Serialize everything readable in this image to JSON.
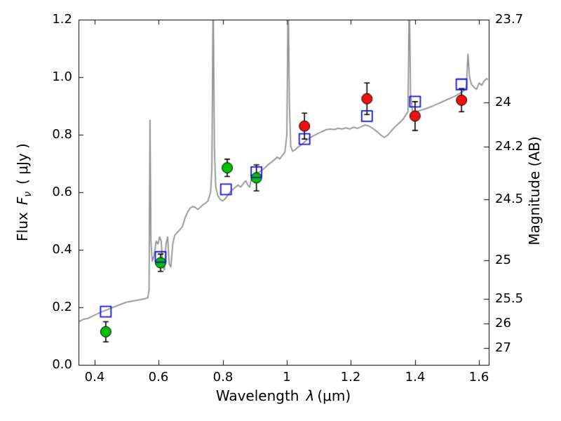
{
  "figure": {
    "background": "#ffffff",
    "frame_color": "#000000",
    "axes": {
      "x": {
        "label_prefix": "Wavelength",
        "label_symbol": "λ",
        "label_unit": "(μm)",
        "min": 0.35,
        "max": 1.63,
        "ticks": [
          0.4,
          0.6,
          0.8,
          1,
          1.2,
          1.4,
          1.6
        ],
        "tick_labels": [
          "0.4",
          "0.6",
          "0.8",
          "1",
          "1.2",
          "1.4",
          "1.6"
        ]
      },
      "y_left": {
        "label_prefix": "Flux",
        "label_symbol": "F",
        "label_sub": "ν",
        "label_unit": "( μJy )",
        "min": 0.0,
        "max": 1.2,
        "ticks": [
          0.0,
          0.2,
          0.4,
          0.6,
          0.8,
          1.0,
          1.2
        ],
        "tick_labels": [
          "0.0",
          "0.2",
          "0.4",
          "0.6",
          "0.8",
          "1.0",
          "1.2"
        ]
      },
      "y_right": {
        "label": "Magnitude (AB)",
        "zeropoint_ab": 23.9,
        "ticks": [
          23.7,
          24,
          24.2,
          24.5,
          25,
          25.5,
          26,
          27
        ],
        "tick_labels": [
          "23.7",
          "24",
          "24.2",
          "24.5",
          "25",
          "25.5",
          "26",
          "27"
        ]
      }
    }
  },
  "chart_data": {
    "type": "line",
    "title": "",
    "xlabel": "Wavelength λ (μm)",
    "ylabel": "Flux Fν ( μJy )",
    "ylabel_right": "Magnitude (AB)",
    "xlim": [
      0.35,
      1.63
    ],
    "ylim": [
      0.0,
      1.2
    ],
    "grid": false,
    "legend": "none",
    "series": [
      {
        "name": "model-spectrum",
        "type": "line",
        "color": "#909090",
        "linewidth": 1.8,
        "x": [
          0.35,
          0.365,
          0.38,
          0.395,
          0.41,
          0.425,
          0.44,
          0.455,
          0.47,
          0.485,
          0.5,
          0.515,
          0.53,
          0.545,
          0.558,
          0.566,
          0.57,
          0.573,
          0.576,
          0.58,
          0.586,
          0.592,
          0.598,
          0.603,
          0.608,
          0.613,
          0.618,
          0.623,
          0.628,
          0.633,
          0.638,
          0.644,
          0.65,
          0.658,
          0.666,
          0.674,
          0.682,
          0.69,
          0.698,
          0.706,
          0.714,
          0.722,
          0.73,
          0.738,
          0.746,
          0.754,
          0.762,
          0.766,
          0.77,
          0.774,
          0.778,
          0.784,
          0.792,
          0.8,
          0.808,
          0.816,
          0.824,
          0.832,
          0.84,
          0.848,
          0.856,
          0.864,
          0.872,
          0.878,
          0.884,
          0.89,
          0.898,
          0.906,
          0.914,
          0.922,
          0.93,
          0.938,
          0.946,
          0.954,
          0.962,
          0.97,
          0.978,
          0.986,
          0.994,
          1.0,
          1.004,
          1.008,
          1.012,
          1.018,
          1.026,
          1.034,
          1.042,
          1.05,
          1.058,
          1.066,
          1.074,
          1.082,
          1.09,
          1.1,
          1.112,
          1.124,
          1.136,
          1.148,
          1.16,
          1.172,
          1.184,
          1.196,
          1.208,
          1.22,
          1.232,
          1.244,
          1.256,
          1.268,
          1.28,
          1.292,
          1.304,
          1.316,
          1.328,
          1.34,
          1.352,
          1.364,
          1.372,
          1.378,
          1.382,
          1.386,
          1.392,
          1.4,
          1.41,
          1.42,
          1.432,
          1.444,
          1.456,
          1.468,
          1.48,
          1.492,
          1.504,
          1.516,
          1.528,
          1.54,
          1.552,
          1.56,
          1.565,
          1.57,
          1.576,
          1.584,
          1.592,
          1.6,
          1.608,
          1.616,
          1.624,
          1.63
        ],
        "y": [
          0.15,
          0.158,
          0.162,
          0.17,
          0.178,
          0.186,
          0.192,
          0.199,
          0.205,
          0.212,
          0.218,
          0.221,
          0.224,
          0.227,
          0.23,
          0.233,
          0.26,
          0.85,
          0.43,
          0.36,
          0.38,
          0.43,
          0.42,
          0.445,
          0.43,
          0.34,
          0.33,
          0.42,
          0.445,
          0.35,
          0.34,
          0.42,
          0.45,
          0.46,
          0.47,
          0.48,
          0.51,
          0.53,
          0.545,
          0.55,
          0.548,
          0.54,
          0.548,
          0.556,
          0.562,
          0.57,
          0.6,
          0.68,
          1.3,
          0.75,
          0.62,
          0.59,
          0.575,
          0.57,
          0.578,
          0.59,
          0.602,
          0.61,
          0.618,
          0.625,
          0.618,
          0.63,
          0.64,
          0.625,
          0.618,
          0.65,
          0.662,
          0.668,
          0.67,
          0.676,
          0.684,
          0.692,
          0.7,
          0.706,
          0.714,
          0.722,
          0.716,
          0.728,
          0.74,
          0.8,
          1.3,
          0.9,
          0.76,
          0.742,
          0.748,
          0.756,
          0.762,
          0.77,
          0.778,
          0.784,
          0.79,
          0.796,
          0.8,
          0.806,
          0.812,
          0.818,
          0.82,
          0.818,
          0.822,
          0.82,
          0.824,
          0.82,
          0.826,
          0.822,
          0.828,
          0.834,
          0.83,
          0.822,
          0.812,
          0.8,
          0.79,
          0.8,
          0.816,
          0.83,
          0.842,
          0.856,
          0.87,
          0.88,
          1.3,
          0.94,
          0.88,
          0.878,
          0.882,
          0.886,
          0.89,
          0.895,
          0.9,
          0.906,
          0.912,
          0.918,
          0.924,
          0.93,
          0.936,
          0.944,
          0.952,
          0.965,
          1.08,
          1.0,
          0.975,
          0.965,
          0.958,
          0.98,
          0.972,
          0.988,
          0.995,
          0.99
        ]
      },
      {
        "name": "observed-photometry-optical",
        "type": "scatter",
        "marker": "circle",
        "color": "#00c000",
        "edge_color": "#000000",
        "marker_size": 15,
        "points": [
          [
            0.435,
            0.115,
            0.035
          ],
          [
            0.606,
            0.355,
            0.03
          ],
          [
            0.814,
            0.685,
            0.03
          ],
          [
            0.905,
            0.65,
            0.045
          ]
        ]
      },
      {
        "name": "observed-photometry-infrared",
        "type": "scatter",
        "marker": "circle",
        "color": "#ee1111",
        "edge_color": "#000000",
        "marker_size": 15,
        "points": [
          [
            1.055,
            0.83,
            0.045
          ],
          [
            1.25,
            0.925,
            0.055
          ],
          [
            1.4,
            0.865,
            0.05
          ],
          [
            1.545,
            0.92,
            0.04
          ]
        ]
      },
      {
        "name": "model-photometry",
        "type": "scatter",
        "marker": "square-open",
        "color": "#1111dd",
        "edge_width": 1.8,
        "marker_size": 15,
        "points": [
          [
            0.435,
            0.185,
            0
          ],
          [
            0.606,
            0.375,
            0
          ],
          [
            0.81,
            0.61,
            0
          ],
          [
            0.905,
            0.67,
            0
          ],
          [
            1.055,
            0.785,
            0
          ],
          [
            1.25,
            0.865,
            0
          ],
          [
            1.4,
            0.915,
            0
          ],
          [
            1.545,
            0.975,
            0
          ]
        ]
      }
    ],
    "errorbar_color": "#000000"
  }
}
